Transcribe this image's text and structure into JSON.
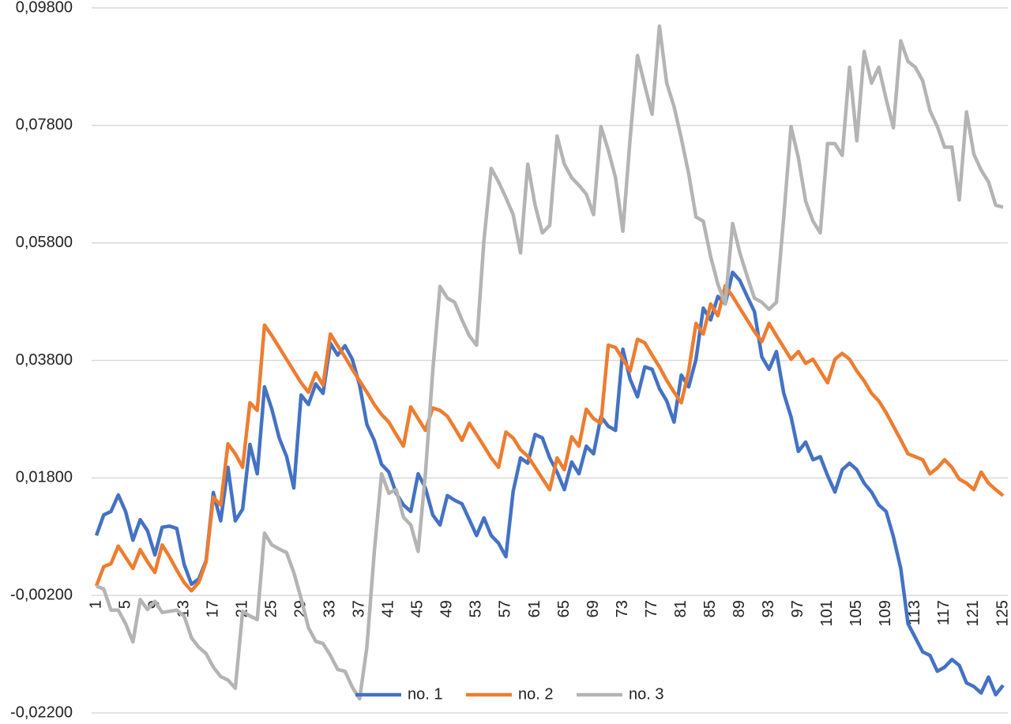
{
  "chart_data": {
    "type": "line",
    "categories": [
      "1",
      null,
      null,
      null,
      "5",
      null,
      null,
      null,
      "9",
      null,
      null,
      null,
      "13",
      null,
      null,
      null,
      "17",
      null,
      null,
      null,
      "21",
      null,
      null,
      null,
      "25",
      null,
      null,
      null,
      "29",
      null,
      null,
      null,
      "33",
      null,
      null,
      null,
      "37",
      null,
      null,
      null,
      "41",
      null,
      null,
      null,
      "45",
      null,
      null,
      null,
      "49",
      null,
      null,
      null,
      "53",
      null,
      null,
      null,
      "57",
      null,
      null,
      null,
      "61",
      null,
      null,
      null,
      "65",
      null,
      null,
      null,
      "69",
      null,
      null,
      null,
      "73",
      null,
      null,
      null,
      "77",
      null,
      null,
      null,
      "81",
      null,
      null,
      null,
      "85",
      null,
      null,
      null,
      "89",
      null,
      null,
      null,
      "93",
      null,
      null,
      null,
      "97",
      null,
      null,
      null,
      "101",
      null,
      null,
      null,
      "105",
      null,
      null,
      null,
      "109",
      null,
      null,
      null,
      "113",
      null,
      null,
      null,
      "117",
      null,
      null,
      null,
      "121",
      null,
      null,
      null,
      "125"
    ],
    "series": [
      {
        "name": "no. 1",
        "color": "#4472c4",
        "values": [
          0.0082,
          0.0117,
          0.0123,
          0.0151,
          0.0123,
          0.0074,
          0.0109,
          0.009,
          0.0049,
          0.0096,
          0.0098,
          0.0094,
          0.0033,
          -0.0001,
          0.0008,
          0.0039,
          0.0155,
          0.0107,
          0.0198,
          0.0107,
          0.0127,
          0.0237,
          0.0187,
          0.0335,
          0.0297,
          0.0248,
          0.0217,
          0.0163,
          0.0321,
          0.0305,
          0.034,
          0.0324,
          0.0409,
          0.0389,
          0.0405,
          0.0382,
          0.0338,
          0.0271,
          0.0244,
          0.0203,
          0.019,
          0.0154,
          0.0134,
          0.0123,
          0.0187,
          0.0163,
          0.0117,
          0.01,
          0.015,
          0.0142,
          0.0136,
          0.0109,
          0.0082,
          0.0112,
          0.0082,
          0.0069,
          0.0046,
          0.0157,
          0.0214,
          0.0205,
          0.0254,
          0.0248,
          0.0214,
          0.019,
          0.016,
          0.0207,
          0.0187,
          0.0234,
          0.0221,
          0.0284,
          0.0268,
          0.0261,
          0.0399,
          0.0348,
          0.0318,
          0.0369,
          0.0365,
          0.0332,
          0.0311,
          0.0275,
          0.0355,
          0.0335,
          0.0382,
          0.0469,
          0.0449,
          0.0489,
          0.0476,
          0.053,
          0.0516,
          0.0489,
          0.0463,
          0.0386,
          0.0365,
          0.0395,
          0.0324,
          0.0284,
          0.0225,
          0.0241,
          0.0211,
          0.0216,
          0.0184,
          0.0156,
          0.0194,
          0.0205,
          0.0194,
          0.0171,
          0.0156,
          0.0134,
          0.0123,
          0.008,
          0.0026,
          -0.0068,
          -0.0092,
          -0.0116,
          -0.0122,
          -0.0149,
          -0.0142,
          -0.0129,
          -0.0139,
          -0.0169,
          -0.0175,
          -0.0186,
          -0.0159,
          -0.0189,
          -0.0173
        ]
      },
      {
        "name": "no. 2",
        "color": "#ed7d31",
        "values": [
          -0.0004,
          0.0029,
          0.0034,
          0.0064,
          0.0045,
          0.0026,
          0.0058,
          0.0037,
          0.0019,
          0.0066,
          0.0046,
          0.0023,
          0.0002,
          -0.0012,
          0.0002,
          0.0037,
          0.0147,
          0.0134,
          0.0238,
          0.0221,
          0.0198,
          0.0308,
          0.0295,
          0.044,
          0.0422,
          0.0402,
          0.0382,
          0.0362,
          0.0342,
          0.0326,
          0.0359,
          0.0338,
          0.0425,
          0.0405,
          0.0386,
          0.0365,
          0.0345,
          0.0326,
          0.0305,
          0.0288,
          0.0275,
          0.0254,
          0.0234,
          0.0301,
          0.0281,
          0.0261,
          0.0299,
          0.0295,
          0.0285,
          0.0265,
          0.0244,
          0.0273,
          0.0254,
          0.0234,
          0.0214,
          0.0198,
          0.0258,
          0.0248,
          0.0228,
          0.0217,
          0.0198,
          0.0179,
          0.016,
          0.0214,
          0.0194,
          0.025,
          0.0234,
          0.0297,
          0.0281,
          0.0273,
          0.0406,
          0.0402,
          0.0382,
          0.0362,
          0.0416,
          0.041,
          0.0389,
          0.0369,
          0.0346,
          0.0326,
          0.0308,
          0.0362,
          0.0443,
          0.0425,
          0.0476,
          0.0456,
          0.0507,
          0.0489,
          0.0469,
          0.0449,
          0.0429,
          0.0412,
          0.0443,
          0.0422,
          0.0402,
          0.0382,
          0.0395,
          0.0375,
          0.0382,
          0.0362,
          0.0342,
          0.0382,
          0.0392,
          0.0382,
          0.0362,
          0.0345,
          0.0324,
          0.0311,
          0.0291,
          0.0268,
          0.0245,
          0.0221,
          0.0216,
          0.0211,
          0.0187,
          0.0197,
          0.0211,
          0.0198,
          0.0178,
          0.0171,
          0.016,
          0.019,
          0.0171,
          0.016,
          0.015
        ]
      },
      {
        "name": "no. 3",
        "color": "#b4b4b4",
        "values": [
          -0.0004,
          -0.0009,
          -0.0045,
          -0.0045,
          -0.0068,
          -0.0099,
          -0.0027,
          -0.0044,
          -0.003,
          -0.0049,
          -0.0047,
          -0.0045,
          -0.0055,
          -0.0092,
          -0.0108,
          -0.0119,
          -0.0142,
          -0.0158,
          -0.0164,
          -0.0178,
          -0.0047,
          -0.0055,
          -0.0061,
          0.0086,
          0.0066,
          0.0059,
          0.0053,
          0.0019,
          -0.0025,
          -0.0075,
          -0.0098,
          -0.0102,
          -0.0122,
          -0.0146,
          -0.0149,
          -0.0176,
          -0.0196,
          -0.0108,
          0.0053,
          0.0187,
          0.0154,
          0.016,
          0.0113,
          0.01,
          0.0055,
          0.0187,
          0.0362,
          0.0506,
          0.0486,
          0.0479,
          0.0449,
          0.0422,
          0.0406,
          0.0584,
          0.0707,
          0.0684,
          0.0657,
          0.0628,
          0.0563,
          0.0714,
          0.0644,
          0.0597,
          0.061,
          0.0762,
          0.0714,
          0.0691,
          0.0678,
          0.0663,
          0.0628,
          0.0778,
          0.0738,
          0.0691,
          0.06,
          0.0758,
          0.0899,
          0.0848,
          0.0799,
          0.0949,
          0.0852,
          0.0812,
          0.0758,
          0.0698,
          0.0624,
          0.0617,
          0.0557,
          0.051,
          0.0476,
          0.0613,
          0.0563,
          0.0523,
          0.0486,
          0.0479,
          0.0467,
          0.0479,
          0.0624,
          0.0778,
          0.0725,
          0.0651,
          0.0617,
          0.0597,
          0.0749,
          0.0749,
          0.0729,
          0.0879,
          0.0754,
          0.0906,
          0.0852,
          0.0879,
          0.0825,
          0.0776,
          0.0924,
          0.0889,
          0.0879,
          0.0856,
          0.0805,
          0.0778,
          0.0743,
          0.0743,
          0.0653,
          0.0803,
          0.0731,
          0.0704,
          0.0684,
          0.0644,
          0.0641
        ]
      }
    ],
    "ylim": [
      -0.022,
      0.098
    ],
    "yticks": [
      {
        "value": -0.022,
        "label": "-0,02200"
      },
      {
        "value": -0.002,
        "label": "-0,00200"
      },
      {
        "value": 0.018,
        "label": "0,01800"
      },
      {
        "value": 0.038,
        "label": "0,03800"
      },
      {
        "value": 0.058,
        "label": "0,05800"
      },
      {
        "value": 0.078,
        "label": "0,07800"
      },
      {
        "value": 0.098,
        "label": "0,09800"
      }
    ],
    "grid": true,
    "legend": "bottom"
  }
}
